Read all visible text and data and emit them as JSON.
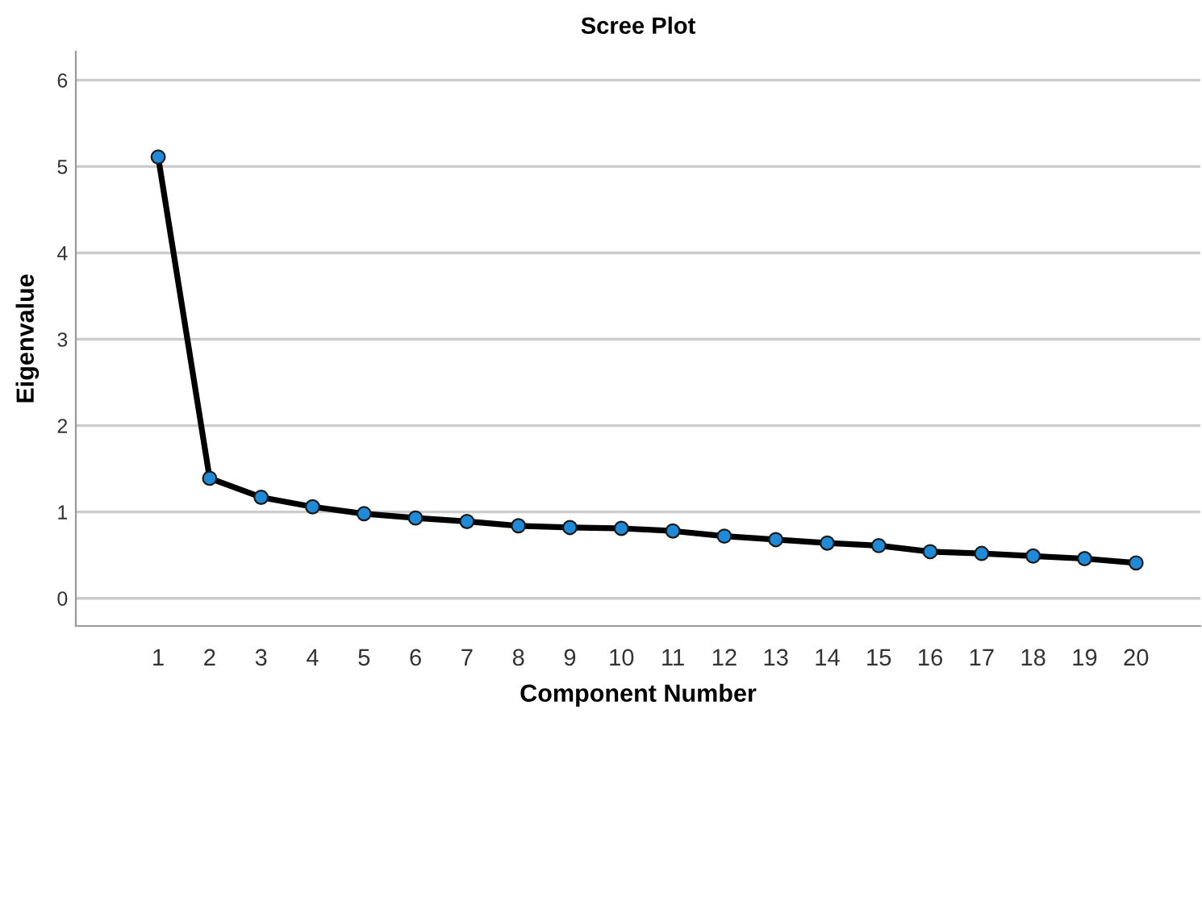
{
  "chart_data": {
    "type": "line",
    "title": "Scree Plot",
    "xlabel": "Component Number",
    "ylabel": "Eigenvalue",
    "x": [
      1,
      2,
      3,
      4,
      5,
      6,
      7,
      8,
      9,
      10,
      11,
      12,
      13,
      14,
      15,
      16,
      17,
      18,
      19,
      20
    ],
    "series": [
      {
        "color": "#000000",
        "colors": [
          "#1f8ad8",
          "#1f8ad8",
          "#1f8ad8",
          "#1f8ad8",
          "#1f8ad8",
          "#1f8ad8",
          "#1f8ad8",
          "#1f8ad8",
          "#1f8ad8",
          "#1f8ad8",
          "#1f8ad8",
          "#1f8ad8",
          "#1f8ad8",
          "#1f8ad8",
          "#1f8ad8",
          "#1f8ad8",
          "#1f8ad8",
          "#1f8ad8",
          "#1f8ad8",
          "#1f8ad8"
        ],
        "values": [
          5.11,
          1.39,
          1.17,
          1.06,
          0.98,
          0.93,
          0.89,
          0.84,
          0.82,
          0.81,
          0.78,
          0.72,
          0.68,
          0.64,
          0.61,
          0.54,
          0.52,
          0.49,
          0.46,
          0.41
        ]
      }
    ],
    "xlim": [
      -0.6,
      21.25
    ],
    "ylim": [
      -0.32,
      6.33
    ],
    "xticks": [
      1,
      2,
      3,
      4,
      5,
      6,
      7,
      8,
      9,
      10,
      11,
      12,
      13,
      14,
      15,
      16,
      17,
      18,
      19,
      20
    ],
    "yticks": [
      0,
      1,
      2,
      3,
      4,
      5,
      6
    ],
    "grid": "y",
    "marker": "circle",
    "line_style": "solid"
  }
}
